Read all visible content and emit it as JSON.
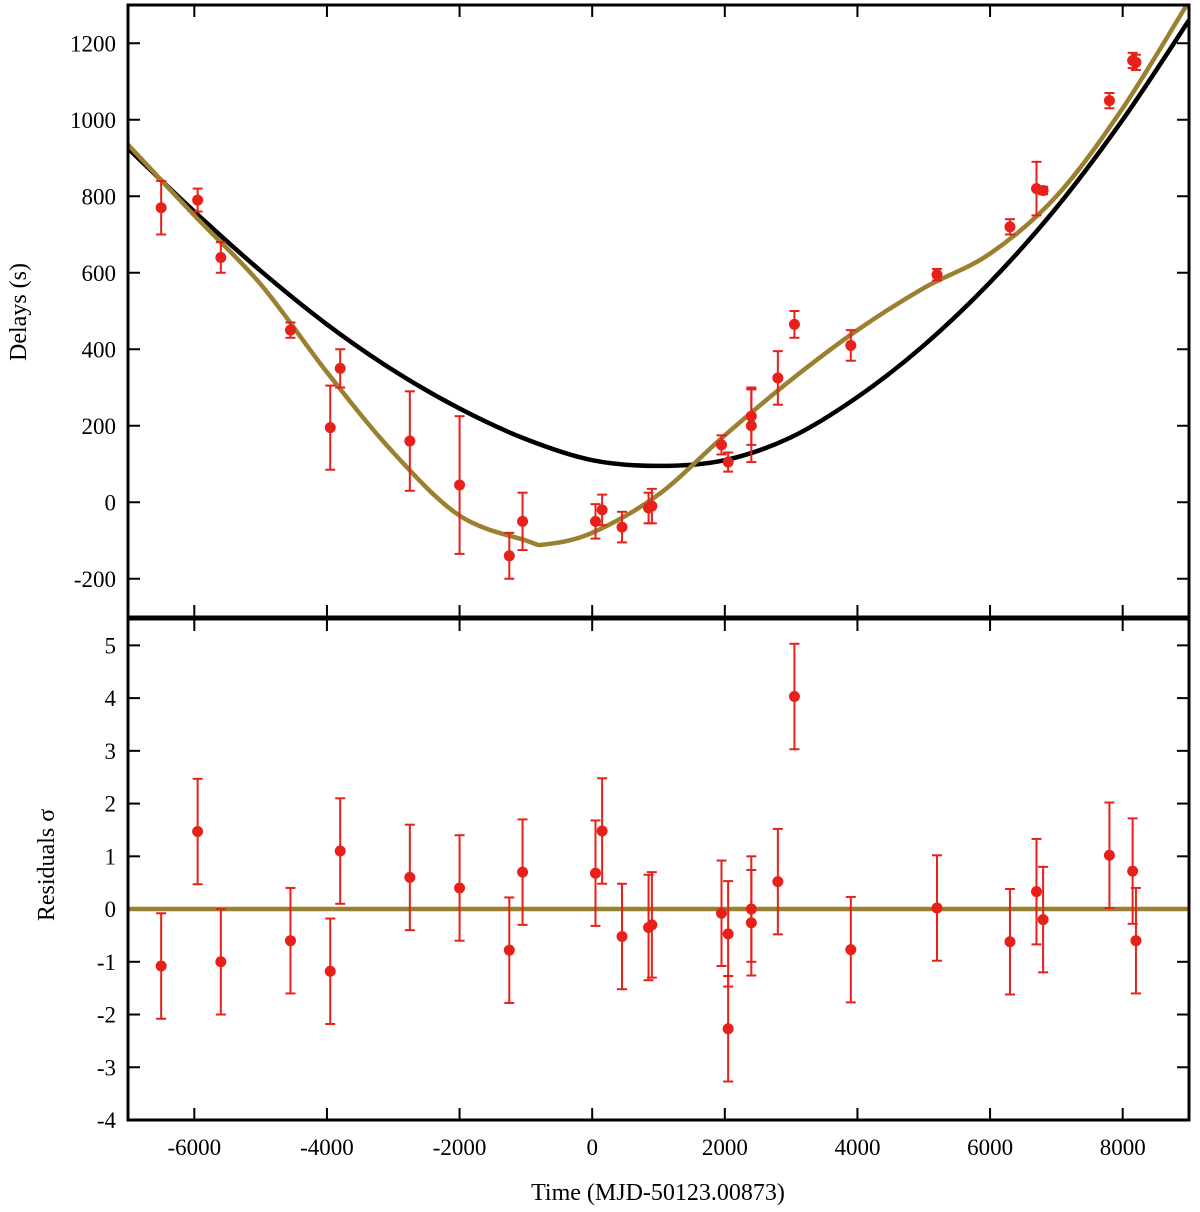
{
  "chart_data": [
    {
      "type": "scatter",
      "panel": "delays",
      "title": "",
      "xlabel": "",
      "ylabel": "Delays (s)",
      "xlim": [
        -7000,
        9000
      ],
      "ylim": [
        -300,
        1300
      ],
      "xticks": [
        -6000,
        -4000,
        -2000,
        0,
        2000,
        4000,
        6000,
        8000
      ],
      "yticks": [
        -200,
        0,
        200,
        400,
        600,
        800,
        1000,
        1200
      ],
      "colors": {
        "points": "#e8201a",
        "model_quadratic": "#000000",
        "model_full": "#9a8030"
      },
      "series": [
        {
          "name": "timing delays",
          "points": [
            {
              "x": -6500,
              "y": 770,
              "err": 70
            },
            {
              "x": -5950,
              "y": 790,
              "err": 30
            },
            {
              "x": -5600,
              "y": 640,
              "err": 40
            },
            {
              "x": -4550,
              "y": 450,
              "err": 20
            },
            {
              "x": -3950,
              "y": 195,
              "err": 110
            },
            {
              "x": -3800,
              "y": 350,
              "err": 50
            },
            {
              "x": -2750,
              "y": 160,
              "err": 130
            },
            {
              "x": -2000,
              "y": 45,
              "err": 180
            },
            {
              "x": -1250,
              "y": -140,
              "err": 60
            },
            {
              "x": -1050,
              "y": -50,
              "err": 75
            },
            {
              "x": 50,
              "y": -50,
              "err": 45
            },
            {
              "x": 150,
              "y": -20,
              "err": 40
            },
            {
              "x": 450,
              "y": -65,
              "err": 40
            },
            {
              "x": 850,
              "y": -15,
              "err": 40
            },
            {
              "x": 900,
              "y": -10,
              "err": 45
            },
            {
              "x": 1950,
              "y": 150,
              "err": 25
            },
            {
              "x": 2050,
              "y": 105,
              "err": 25
            },
            {
              "x": 2400,
              "y": 225,
              "err": 75
            },
            {
              "x": 2400,
              "y": 200,
              "err": 95
            },
            {
              "x": 2800,
              "y": 325,
              "err": 70
            },
            {
              "x": 3050,
              "y": 465,
              "err": 35
            },
            {
              "x": 3900,
              "y": 410,
              "err": 40
            },
            {
              "x": 5200,
              "y": 595,
              "err": 15
            },
            {
              "x": 6300,
              "y": 720,
              "err": 20
            },
            {
              "x": 6700,
              "y": 820,
              "err": 70
            },
            {
              "x": 6800,
              "y": 815,
              "err": 10
            },
            {
              "x": 7800,
              "y": 1050,
              "err": 20
            },
            {
              "x": 8150,
              "y": 1155,
              "err": 20
            },
            {
              "x": 8200,
              "y": 1150,
              "err": 20
            }
          ]
        },
        {
          "name": "quadratic model",
          "kind": "line",
          "x": [
            -7000,
            -6000,
            -5000,
            -4000,
            -3000,
            -2000,
            -1000,
            0,
            1000,
            2000,
            3000,
            4000,
            5000,
            6000,
            7000,
            8000,
            9000
          ],
          "y": [
            925,
            760,
            605,
            465,
            345,
            245,
            165,
            110,
            95,
            110,
            170,
            275,
            410,
            575,
            770,
            1000,
            1260
          ]
        },
        {
          "name": "full model",
          "kind": "line",
          "x": [
            -7000,
            -6000,
            -5000,
            -4000,
            -3000,
            -2000,
            -1000,
            -700,
            0,
            1000,
            2000,
            3000,
            4000,
            5000,
            6000,
            7000,
            8000,
            9000
          ],
          "y": [
            935,
            750,
            570,
            340,
            130,
            -35,
            -100,
            -110,
            -80,
            20,
            175,
            320,
            450,
            560,
            650,
            800,
            1030,
            1310
          ]
        }
      ]
    },
    {
      "type": "scatter",
      "panel": "residuals",
      "title": "",
      "xlabel": "Time (MJD-50123.00873)",
      "ylabel": "Residuals σ",
      "xlim": [
        -7000,
        9000
      ],
      "ylim": [
        -4,
        5.5
      ],
      "xticks": [
        -6000,
        -4000,
        -2000,
        0,
        2000,
        4000,
        6000,
        8000
      ],
      "yticks": [
        -4,
        -3,
        -2,
        -1,
        0,
        1,
        2,
        3,
        4,
        5
      ],
      "colors": {
        "points": "#e8201a",
        "zero_line": "#9a8030"
      },
      "series": [
        {
          "name": "residuals",
          "points": [
            {
              "x": -6500,
              "y": -1.08,
              "err": 1
            },
            {
              "x": -5950,
              "y": 1.47,
              "err": 1
            },
            {
              "x": -5600,
              "y": -1.0,
              "err": 1
            },
            {
              "x": -4550,
              "y": -0.6,
              "err": 1
            },
            {
              "x": -3950,
              "y": -1.18,
              "err": 1
            },
            {
              "x": -3800,
              "y": 1.1,
              "err": 1
            },
            {
              "x": -2750,
              "y": 0.6,
              "err": 1
            },
            {
              "x": -2000,
              "y": 0.4,
              "err": 1
            },
            {
              "x": -1250,
              "y": -0.78,
              "err": 1
            },
            {
              "x": -1050,
              "y": 0.7,
              "err": 1
            },
            {
              "x": 50,
              "y": 0.68,
              "err": 1
            },
            {
              "x": 150,
              "y": 1.48,
              "err": 1
            },
            {
              "x": 450,
              "y": -0.52,
              "err": 1
            },
            {
              "x": 850,
              "y": -0.35,
              "err": 1
            },
            {
              "x": 900,
              "y": -0.3,
              "err": 1
            },
            {
              "x": 1950,
              "y": -0.08,
              "err": 1
            },
            {
              "x": 2050,
              "y": -2.27,
              "err": 1
            },
            {
              "x": 2050,
              "y": -0.47,
              "err": 1
            },
            {
              "x": 2400,
              "y": 0.0,
              "err": 1
            },
            {
              "x": 2400,
              "y": -0.26,
              "err": 1
            },
            {
              "x": 2800,
              "y": 0.52,
              "err": 1
            },
            {
              "x": 3050,
              "y": 4.03,
              "err": 1
            },
            {
              "x": 3900,
              "y": -0.77,
              "err": 1
            },
            {
              "x": 5200,
              "y": 0.02,
              "err": 1
            },
            {
              "x": 6300,
              "y": -0.62,
              "err": 1
            },
            {
              "x": 6700,
              "y": 0.33,
              "err": 1
            },
            {
              "x": 6800,
              "y": -0.2,
              "err": 1
            },
            {
              "x": 7800,
              "y": 1.02,
              "err": 1
            },
            {
              "x": 8150,
              "y": 0.72,
              "err": 1
            },
            {
              "x": 8200,
              "y": -0.6,
              "err": 1
            }
          ]
        },
        {
          "name": "zero line",
          "kind": "line",
          "x": [
            -7000,
            9000
          ],
          "y": [
            0,
            0
          ]
        }
      ]
    }
  ]
}
